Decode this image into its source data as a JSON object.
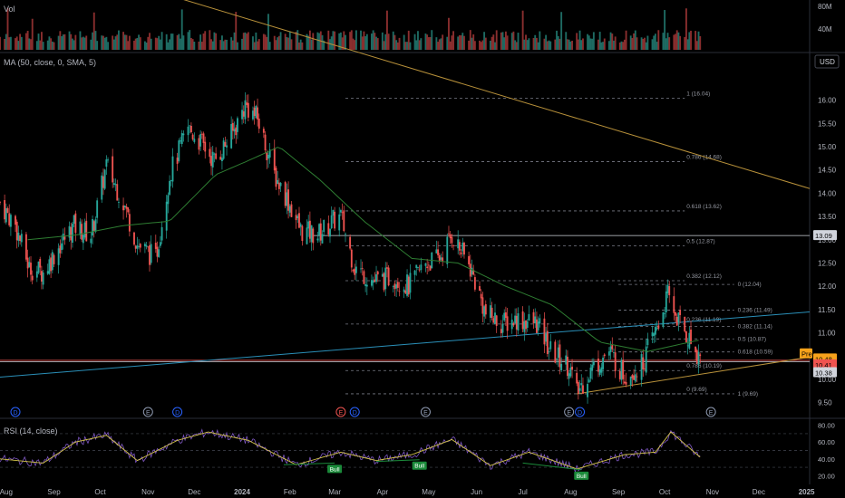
{
  "colors": {
    "background": "#000000",
    "up": "#26a69a",
    "down": "#ef5350",
    "ma": "#2e7d32",
    "rsi": "#7e57c2",
    "rsi_ma": "#d4c44a",
    "trendline_gold": "#b8913a",
    "trendline_blue": "#2a8fb8",
    "fib_dashed": "#787b86",
    "price_tag": "#f7a21b",
    "bid_badge": "#1b8a3a",
    "event_badge": "#33415c"
  },
  "panels": {
    "volume": {
      "title": "Vol",
      "scale": [
        "80M",
        "40M"
      ]
    },
    "price": {
      "title": "MA (50, close, 0, SMA, 5)",
      "currency": "USD"
    },
    "rsi": {
      "title": "RSI (14, close)",
      "scale": [
        "80.00",
        "60.00",
        "40.00",
        "20.00"
      ]
    }
  },
  "price_axis_labels": [
    "16.00",
    "15.50",
    "15.00",
    "14.50",
    "14.00",
    "13.50",
    "13.00",
    "12.50",
    "12.00",
    "11.50",
    "11.00",
    "10.50",
    "10.00",
    "9.50"
  ],
  "price_tags": [
    {
      "text": "13.09",
      "style": "light"
    },
    {
      "text": "Pre",
      "style": "orange"
    },
    {
      "text": "10.48",
      "style": "orange"
    },
    {
      "text": "10.41",
      "style": "red"
    },
    {
      "text": "10.38",
      "style": "light"
    }
  ],
  "time_axis_labels": [
    "Aug",
    "Sep",
    "Oct",
    "Nov",
    "Dec",
    "2024",
    "Feb",
    "Mar",
    "Apr",
    "May",
    "Jun",
    "Jul",
    "Aug",
    "Sep",
    "Oct",
    "Nov",
    "Dec",
    "2025"
  ],
  "fib_top": [
    {
      "text": "1 (16.04)",
      "price": 16.04
    },
    {
      "text": "0.786 (14.68)",
      "price": 14.68
    },
    {
      "text": "0.618 (13.62)",
      "price": 13.62
    },
    {
      "text": "0.5 (12.87)",
      "price": 12.87
    },
    {
      "text": "0.382 (12.12)",
      "price": 12.12
    },
    {
      "text": "0.236 (11.19)",
      "price": 11.19
    },
    {
      "text": "0.786 (10.19)",
      "price": 10.19
    },
    {
      "text": "0 (9.69)",
      "price": 9.69
    }
  ],
  "fib_right": [
    {
      "text": "0 (12.04)",
      "price": 12.04
    },
    {
      "text": "0.236 (11.49)",
      "price": 11.49
    },
    {
      "text": "0.382 (11.14)",
      "price": 11.14
    },
    {
      "text": "0.5 (10.87)",
      "price": 10.87
    },
    {
      "text": "0.618 (10.59)",
      "price": 10.59
    },
    {
      "text": "1 (9.69)",
      "price": 9.69
    }
  ],
  "event_badges": [
    "D",
    "E",
    "D",
    "E",
    "D",
    "E",
    "E",
    "D",
    "E"
  ],
  "rsi_badges": [
    "Bull",
    "Bull",
    "Bull"
  ],
  "chart_data": {
    "type": "candlestick",
    "title": "MA (50, close, 0, SMA, 5)",
    "y_range": [
      9.3,
      16.4
    ],
    "x_start": "2023-07-28",
    "x_end": "2025-01-03",
    "horizontal_levels": [
      13.09,
      10.41,
      10.38
    ],
    "gold_trendline": {
      "from": [
        "2023-11-20",
        18.2
      ],
      "to": [
        "2025-01-03",
        14.1
      ]
    },
    "blue_trendline": {
      "from": [
        "2023-07-28",
        10.05
      ],
      "to": [
        "2025-01-03",
        11.45
      ]
    },
    "lower_support_line": {
      "from": [
        "2024-08-05",
        9.69
      ],
      "to": [
        "2025-01-03",
        10.48
      ]
    },
    "close_path": [
      [
        "2023-07-28",
        13.8
      ],
      [
        "2023-08-07",
        13.3
      ],
      [
        "2023-08-16",
        12.4
      ],
      [
        "2023-08-25",
        12.3
      ],
      [
        "2023-09-05",
        12.9
      ],
      [
        "2023-09-14",
        13.3
      ],
      [
        "2023-09-25",
        13.1
      ],
      [
        "2023-10-05",
        14.6
      ],
      [
        "2023-10-16",
        13.8
      ],
      [
        "2023-10-25",
        12.9
      ],
      [
        "2023-11-06",
        12.6
      ],
      [
        "2023-11-15",
        14.4
      ],
      [
        "2023-11-27",
        15.4
      ],
      [
        "2023-12-05",
        15.1
      ],
      [
        "2023-12-14",
        14.7
      ],
      [
        "2023-12-26",
        15.3
      ],
      [
        "2024-01-03",
        15.9
      ],
      [
        "2024-01-11",
        15.6
      ],
      [
        "2024-01-22",
        14.4
      ],
      [
        "2024-01-30",
        13.9
      ],
      [
        "2024-02-08",
        13.2
      ],
      [
        "2024-02-19",
        13.1
      ],
      [
        "2024-02-29",
        13.4
      ],
      [
        "2024-03-05",
        13.5
      ],
      [
        "2024-03-14",
        12.4
      ],
      [
        "2024-03-27",
        12.1
      ],
      [
        "2024-04-08",
        12.2
      ],
      [
        "2024-04-18",
        12.0
      ],
      [
        "2024-04-29",
        12.5
      ],
      [
        "2024-05-08",
        12.6
      ],
      [
        "2024-05-16",
        13.1
      ],
      [
        "2024-05-28",
        12.4
      ],
      [
        "2024-06-07",
        11.4
      ],
      [
        "2024-06-18",
        11.2
      ],
      [
        "2024-06-27",
        11.3
      ],
      [
        "2024-07-10",
        11.2
      ],
      [
        "2024-07-19",
        10.6
      ],
      [
        "2024-07-31",
        10.3
      ],
      [
        "2024-08-05",
        9.7
      ],
      [
        "2024-08-14",
        10.2
      ],
      [
        "2024-08-26",
        10.6
      ],
      [
        "2024-09-05",
        10.1
      ],
      [
        "2024-09-16",
        10.3
      ],
      [
        "2024-09-26",
        11.1
      ],
      [
        "2024-10-03",
        11.8
      ],
      [
        "2024-10-08",
        11.4
      ],
      [
        "2024-10-16",
        10.9
      ],
      [
        "2024-10-24",
        10.48
      ]
    ],
    "ma50_path": [
      [
        "2023-08-15",
        13.0
      ],
      [
        "2023-09-15",
        13.1
      ],
      [
        "2023-10-15",
        13.3
      ],
      [
        "2023-11-15",
        13.4
      ],
      [
        "2023-12-15",
        14.4
      ],
      [
        "2024-01-05",
        14.7
      ],
      [
        "2024-01-25",
        15.0
      ],
      [
        "2024-02-20",
        14.3
      ],
      [
        "2024-03-20",
        13.4
      ],
      [
        "2024-04-20",
        12.6
      ],
      [
        "2024-05-20",
        12.5
      ],
      [
        "2024-06-20",
        12.0
      ],
      [
        "2024-07-20",
        11.6
      ],
      [
        "2024-08-20",
        10.8
      ],
      [
        "2024-09-20",
        10.6
      ],
      [
        "2024-10-24",
        10.85
      ]
    ],
    "rsi_path": [
      [
        "2023-07-28",
        40
      ],
      [
        "2023-08-25",
        35
      ],
      [
        "2023-09-15",
        60
      ],
      [
        "2023-10-05",
        68
      ],
      [
        "2023-10-25",
        38
      ],
      [
        "2023-11-20",
        62
      ],
      [
        "2023-12-10",
        72
      ],
      [
        "2024-01-05",
        62
      ],
      [
        "2024-02-05",
        33
      ],
      [
        "2024-03-05",
        48
      ],
      [
        "2024-03-28",
        38
      ],
      [
        "2024-04-20",
        45
      ],
      [
        "2024-05-16",
        63
      ],
      [
        "2024-06-10",
        32
      ],
      [
        "2024-07-05",
        48
      ],
      [
        "2024-08-05",
        28
      ],
      [
        "2024-09-05",
        45
      ],
      [
        "2024-09-25",
        48
      ],
      [
        "2024-10-05",
        72
      ],
      [
        "2024-10-24",
        42
      ]
    ],
    "rsi_range": [
      15,
      85
    ]
  }
}
